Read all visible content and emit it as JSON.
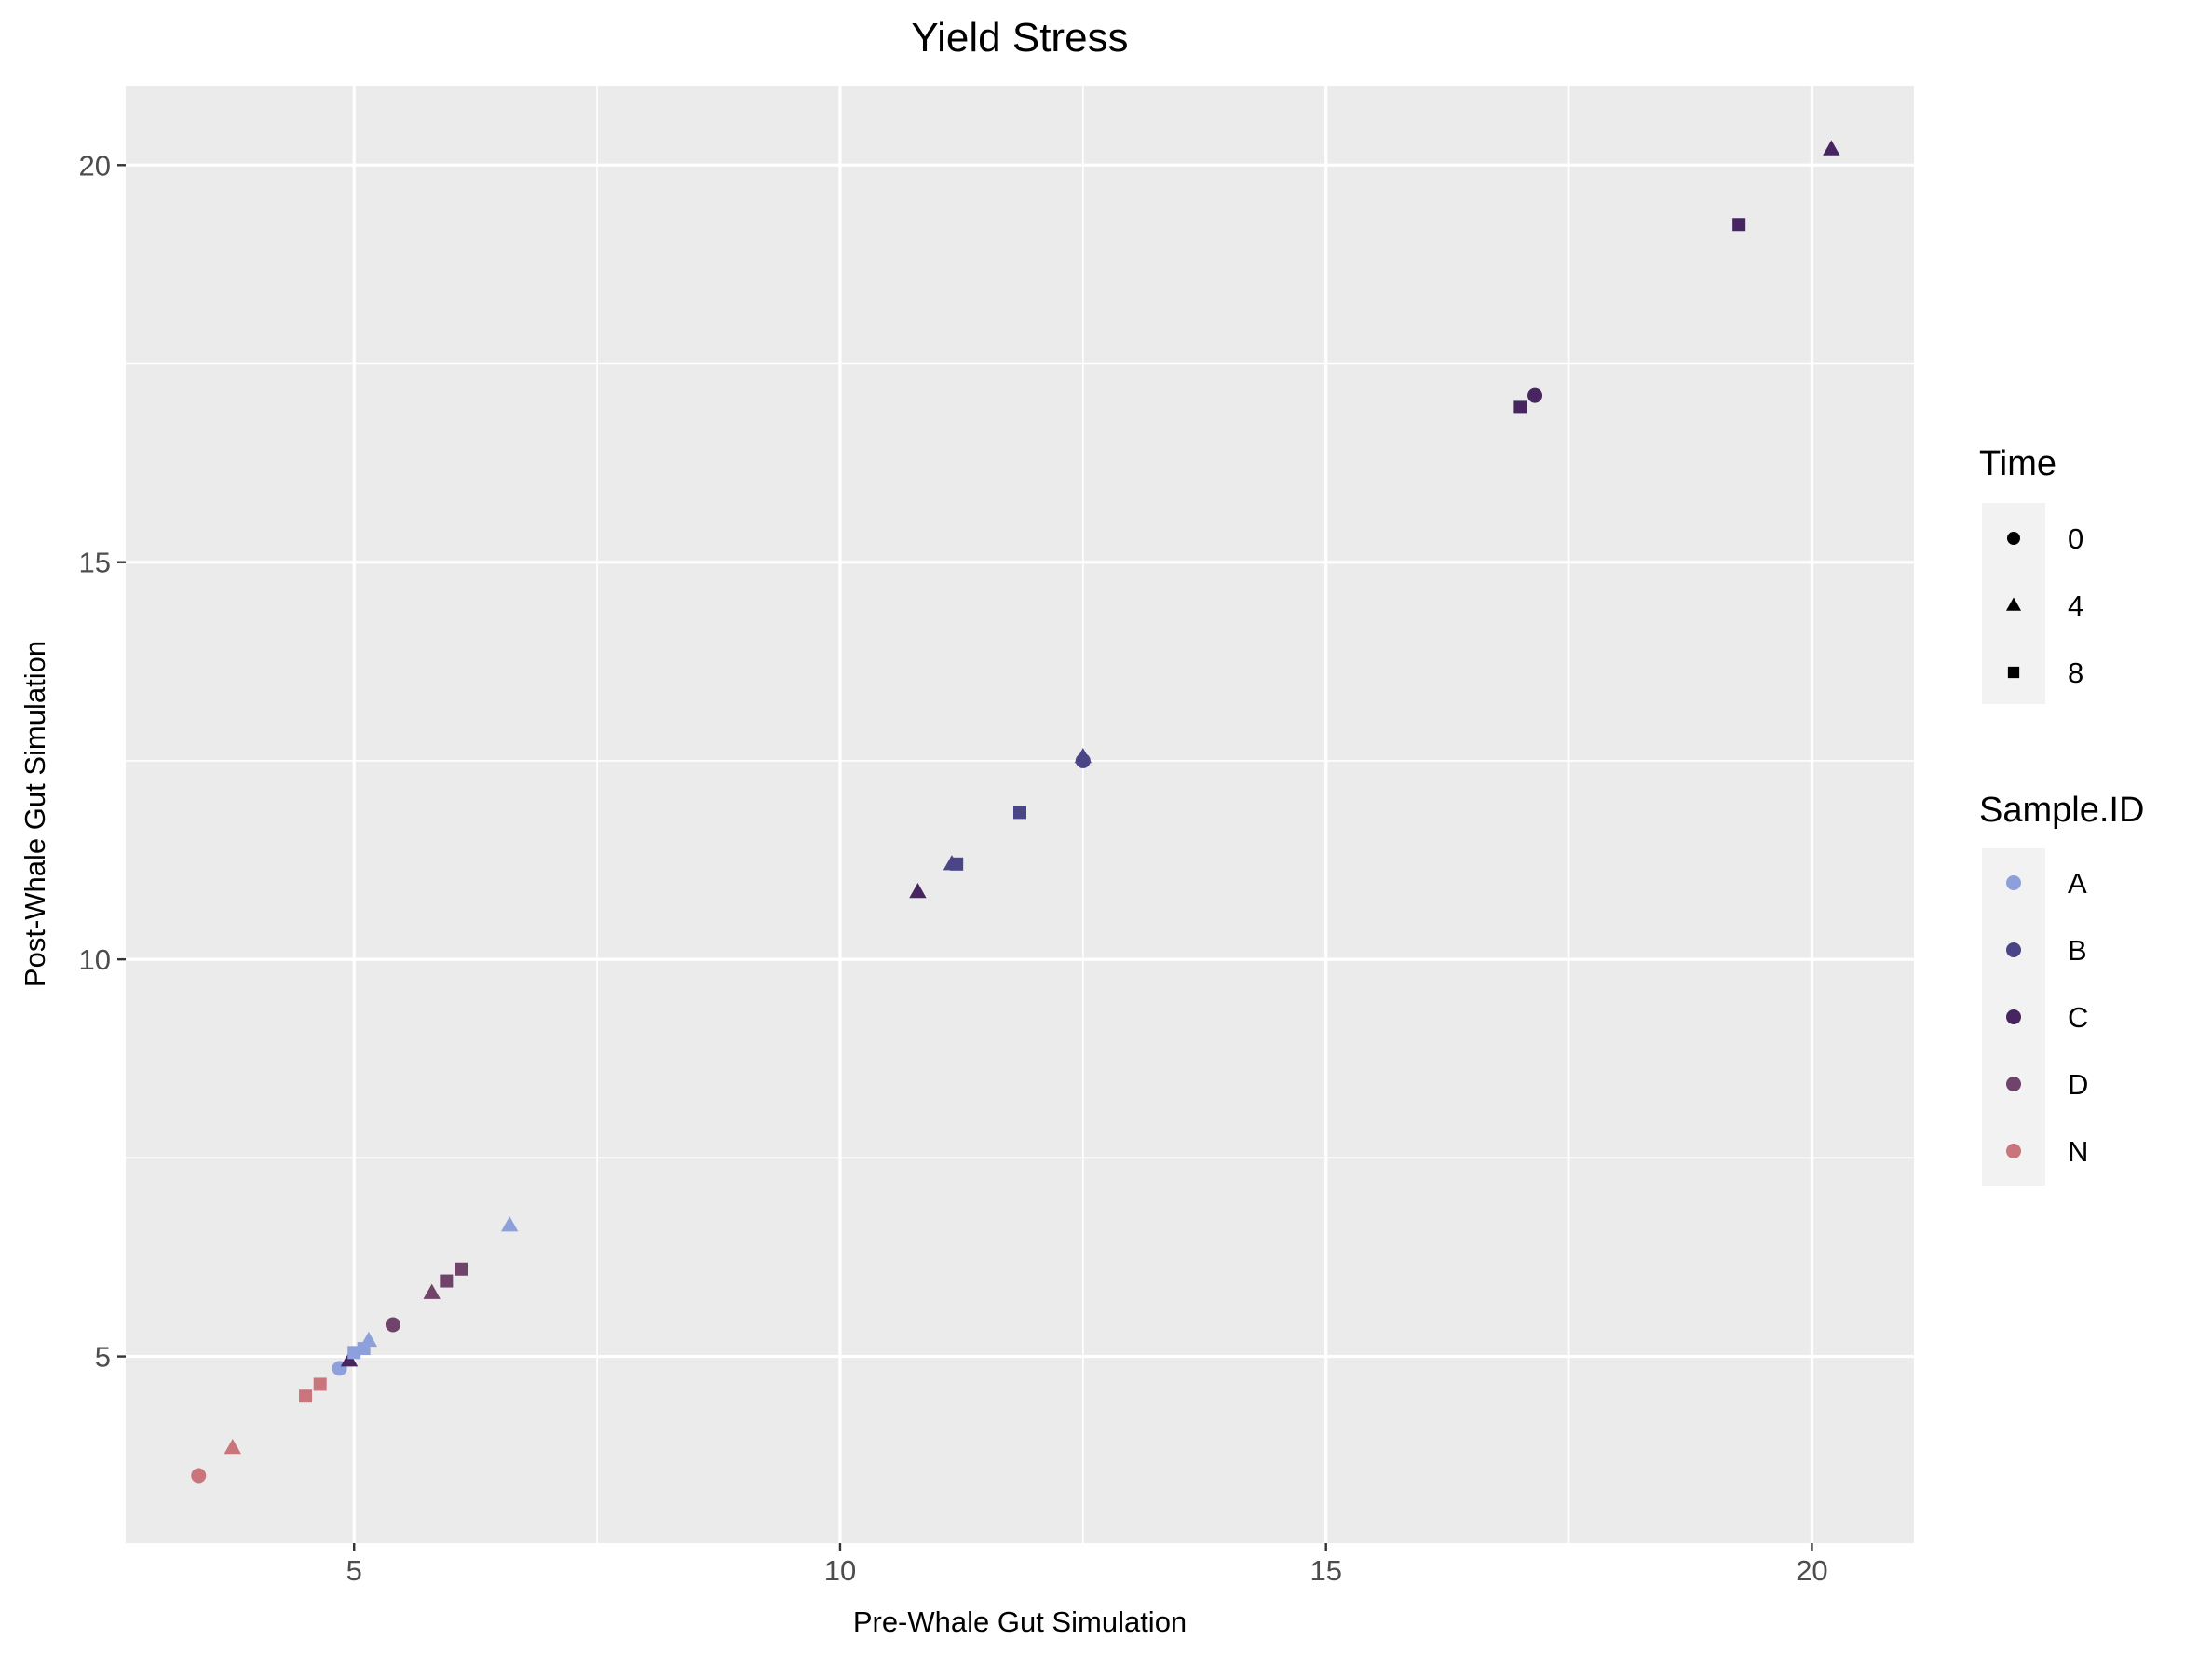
{
  "chart_data": {
    "type": "scatter",
    "title": "Yield Stress",
    "xlabel": "Pre-Whale Gut Simulation",
    "ylabel": "Post-Whale Gut Simulation",
    "xlim": [
      2.65,
      21.05
    ],
    "ylim": [
      2.65,
      21.0
    ],
    "x_ticks": [
      5,
      10,
      15,
      20
    ],
    "y_ticks": [
      5,
      10,
      15,
      20
    ],
    "grid": true,
    "legend_position": "right",
    "legends": {
      "shape": {
        "title": "Time",
        "items": [
          {
            "label": "0",
            "shape": "circle"
          },
          {
            "label": "4",
            "shape": "triangle"
          },
          {
            "label": "8",
            "shape": "square"
          }
        ]
      },
      "color": {
        "title": "Sample.ID",
        "items": [
          {
            "label": "A",
            "color": "#8da0dc"
          },
          {
            "label": "B",
            "color": "#4a4587"
          },
          {
            "label": "C",
            "color": "#462561"
          },
          {
            "label": "D",
            "color": "#70446a"
          },
          {
            "label": "N",
            "color": "#c9757b"
          }
        ]
      }
    },
    "points": [
      {
        "x": 3.4,
        "y": 3.5,
        "sample": "N",
        "time": "0"
      },
      {
        "x": 3.75,
        "y": 3.85,
        "sample": "N",
        "time": "4"
      },
      {
        "x": 4.5,
        "y": 4.5,
        "sample": "N",
        "time": "8"
      },
      {
        "x": 4.65,
        "y": 4.65,
        "sample": "N",
        "time": "8"
      },
      {
        "x": 4.85,
        "y": 4.85,
        "sample": "A",
        "time": "0"
      },
      {
        "x": 4.95,
        "y": 4.95,
        "sample": "C",
        "time": "4"
      },
      {
        "x": 5.0,
        "y": 5.05,
        "sample": "A",
        "time": "8"
      },
      {
        "x": 5.1,
        "y": 5.1,
        "sample": "A",
        "time": "8"
      },
      {
        "x": 5.15,
        "y": 5.2,
        "sample": "A",
        "time": "4"
      },
      {
        "x": 5.4,
        "y": 5.4,
        "sample": "D",
        "time": "0"
      },
      {
        "x": 5.8,
        "y": 5.8,
        "sample": "D",
        "time": "4"
      },
      {
        "x": 5.95,
        "y": 5.95,
        "sample": "D",
        "time": "8"
      },
      {
        "x": 6.1,
        "y": 6.1,
        "sample": "D",
        "time": "8"
      },
      {
        "x": 6.6,
        "y": 6.65,
        "sample": "A",
        "time": "4"
      },
      {
        "x": 10.8,
        "y": 10.85,
        "sample": "C",
        "time": "4"
      },
      {
        "x": 11.15,
        "y": 11.2,
        "sample": "B",
        "time": "4"
      },
      {
        "x": 11.2,
        "y": 11.2,
        "sample": "B",
        "time": "8"
      },
      {
        "x": 11.85,
        "y": 11.85,
        "sample": "B",
        "time": "8"
      },
      {
        "x": 12.5,
        "y": 12.5,
        "sample": "B",
        "time": "0"
      },
      {
        "x": 12.5,
        "y": 12.55,
        "sample": "B",
        "time": "4"
      },
      {
        "x": 17.0,
        "y": 16.95,
        "sample": "C",
        "time": "8"
      },
      {
        "x": 17.15,
        "y": 17.1,
        "sample": "C",
        "time": "0"
      },
      {
        "x": 19.25,
        "y": 19.25,
        "sample": "C",
        "time": "8"
      },
      {
        "x": 20.2,
        "y": 20.2,
        "sample": "C",
        "time": "4"
      }
    ]
  }
}
